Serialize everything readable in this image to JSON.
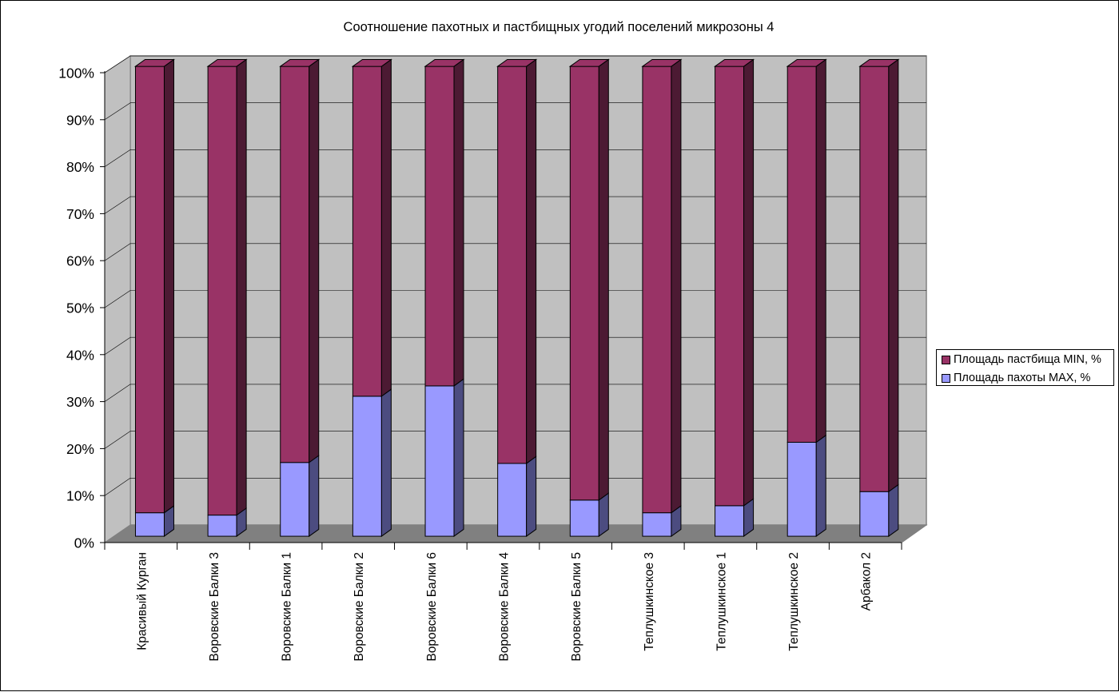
{
  "chart_data": {
    "type": "bar",
    "stacked": true,
    "percent_stacked": true,
    "three_d": true,
    "title": "Соотношение пахотных и пастбищных угодий поселений микрозоны 4",
    "categories": [
      "Красивый Курган",
      "Воровские Балки 3",
      "Воровские Балки 1",
      "Воровские Балки 2",
      "Воровские Балки 6",
      "Воровские Балки 4",
      "Воровские Балки 5",
      "Теплушкинское 3",
      "Теплушкинское 1",
      "Теплушкинское 2",
      "Арбакол 2"
    ],
    "series": [
      {
        "name": "Площадь пахоты MAX, %",
        "values": [
          5,
          4.5,
          15.7,
          29.8,
          32,
          15.5,
          7.7,
          5,
          6.5,
          20,
          9.5
        ],
        "color": "#9999FF",
        "side_color": "#4C4C80"
      },
      {
        "name": "Площадь пастбища MIN, %",
        "values": [
          95,
          95.5,
          84.3,
          70.2,
          68,
          84.5,
          92.3,
          95,
          93.5,
          80,
          90.5
        ],
        "color": "#993366",
        "side_color": "#4C1A33"
      }
    ],
    "y_ticks": [
      "0%",
      "10%",
      "20%",
      "30%",
      "40%",
      "50%",
      "60%",
      "70%",
      "80%",
      "90%",
      "100%"
    ],
    "ylim": [
      0,
      100
    ],
    "grid": true,
    "legend_position": "right",
    "legend_order": [
      "Площадь пастбища MIN, %",
      "Площадь пахоты MAX, %"
    ],
    "colors": {
      "wall": "#C0C0C0",
      "floor": "#808080",
      "grid": "#000000"
    }
  }
}
